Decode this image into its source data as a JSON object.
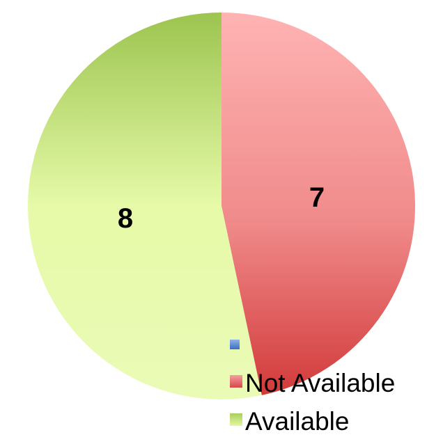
{
  "chart_data": {
    "type": "pie",
    "title": "",
    "slices": [
      {
        "label": "",
        "value": 0,
        "color": "#4F81BD"
      },
      {
        "label": "Not Available",
        "value": 7,
        "color_top": "#FFB0B0",
        "color_bottom": "#D63C3C"
      },
      {
        "label": "Available",
        "value": 8,
        "color_top": "#9BC34E",
        "color_bottom": "#E9FBAE"
      }
    ],
    "legend": {
      "placement": "bottom-right",
      "entries": [
        "",
        "Not Available",
        "Available"
      ]
    },
    "data_labels": [
      "7",
      "8"
    ]
  }
}
